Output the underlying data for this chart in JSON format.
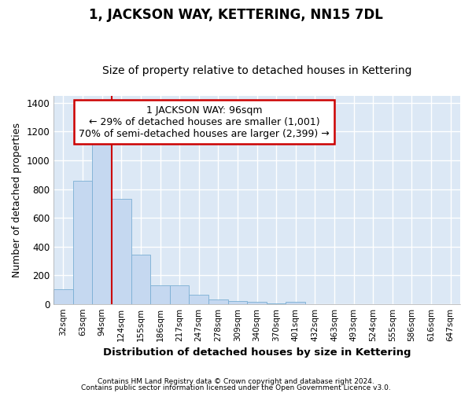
{
  "title": "1, JACKSON WAY, KETTERING, NN15 7DL",
  "subtitle": "Size of property relative to detached houses in Kettering",
  "xlabel": "Distribution of detached houses by size in Kettering",
  "ylabel": "Number of detached properties",
  "bar_labels": [
    "32sqm",
    "63sqm",
    "94sqm",
    "124sqm",
    "155sqm",
    "186sqm",
    "217sqm",
    "247sqm",
    "278sqm",
    "309sqm",
    "340sqm",
    "370sqm",
    "401sqm",
    "432sqm",
    "463sqm",
    "493sqm",
    "524sqm",
    "555sqm",
    "586sqm",
    "616sqm",
    "647sqm"
  ],
  "bar_values": [
    100,
    860,
    1145,
    730,
    345,
    130,
    130,
    65,
    30,
    20,
    15,
    5,
    15,
    0,
    0,
    0,
    0,
    0,
    0,
    0,
    0
  ],
  "bar_color": "#c5d8f0",
  "bar_edge_color": "#7aafd4",
  "property_line_color": "#cc0000",
  "annotation_text": "1 JACKSON WAY: 96sqm\n← 29% of detached houses are smaller (1,001)\n70% of semi-detached houses are larger (2,399) →",
  "annotation_box_color": "#cc0000",
  "ylim": [
    0,
    1450
  ],
  "yticks": [
    0,
    200,
    400,
    600,
    800,
    1000,
    1200,
    1400
  ],
  "footer_line1": "Contains HM Land Registry data © Crown copyright and database right 2024.",
  "footer_line2": "Contains public sector information licensed under the Open Government Licence v3.0.",
  "plot_bg_color": "#dce8f5",
  "title_fontsize": 12,
  "subtitle_fontsize": 10,
  "annotation_fontsize": 9
}
